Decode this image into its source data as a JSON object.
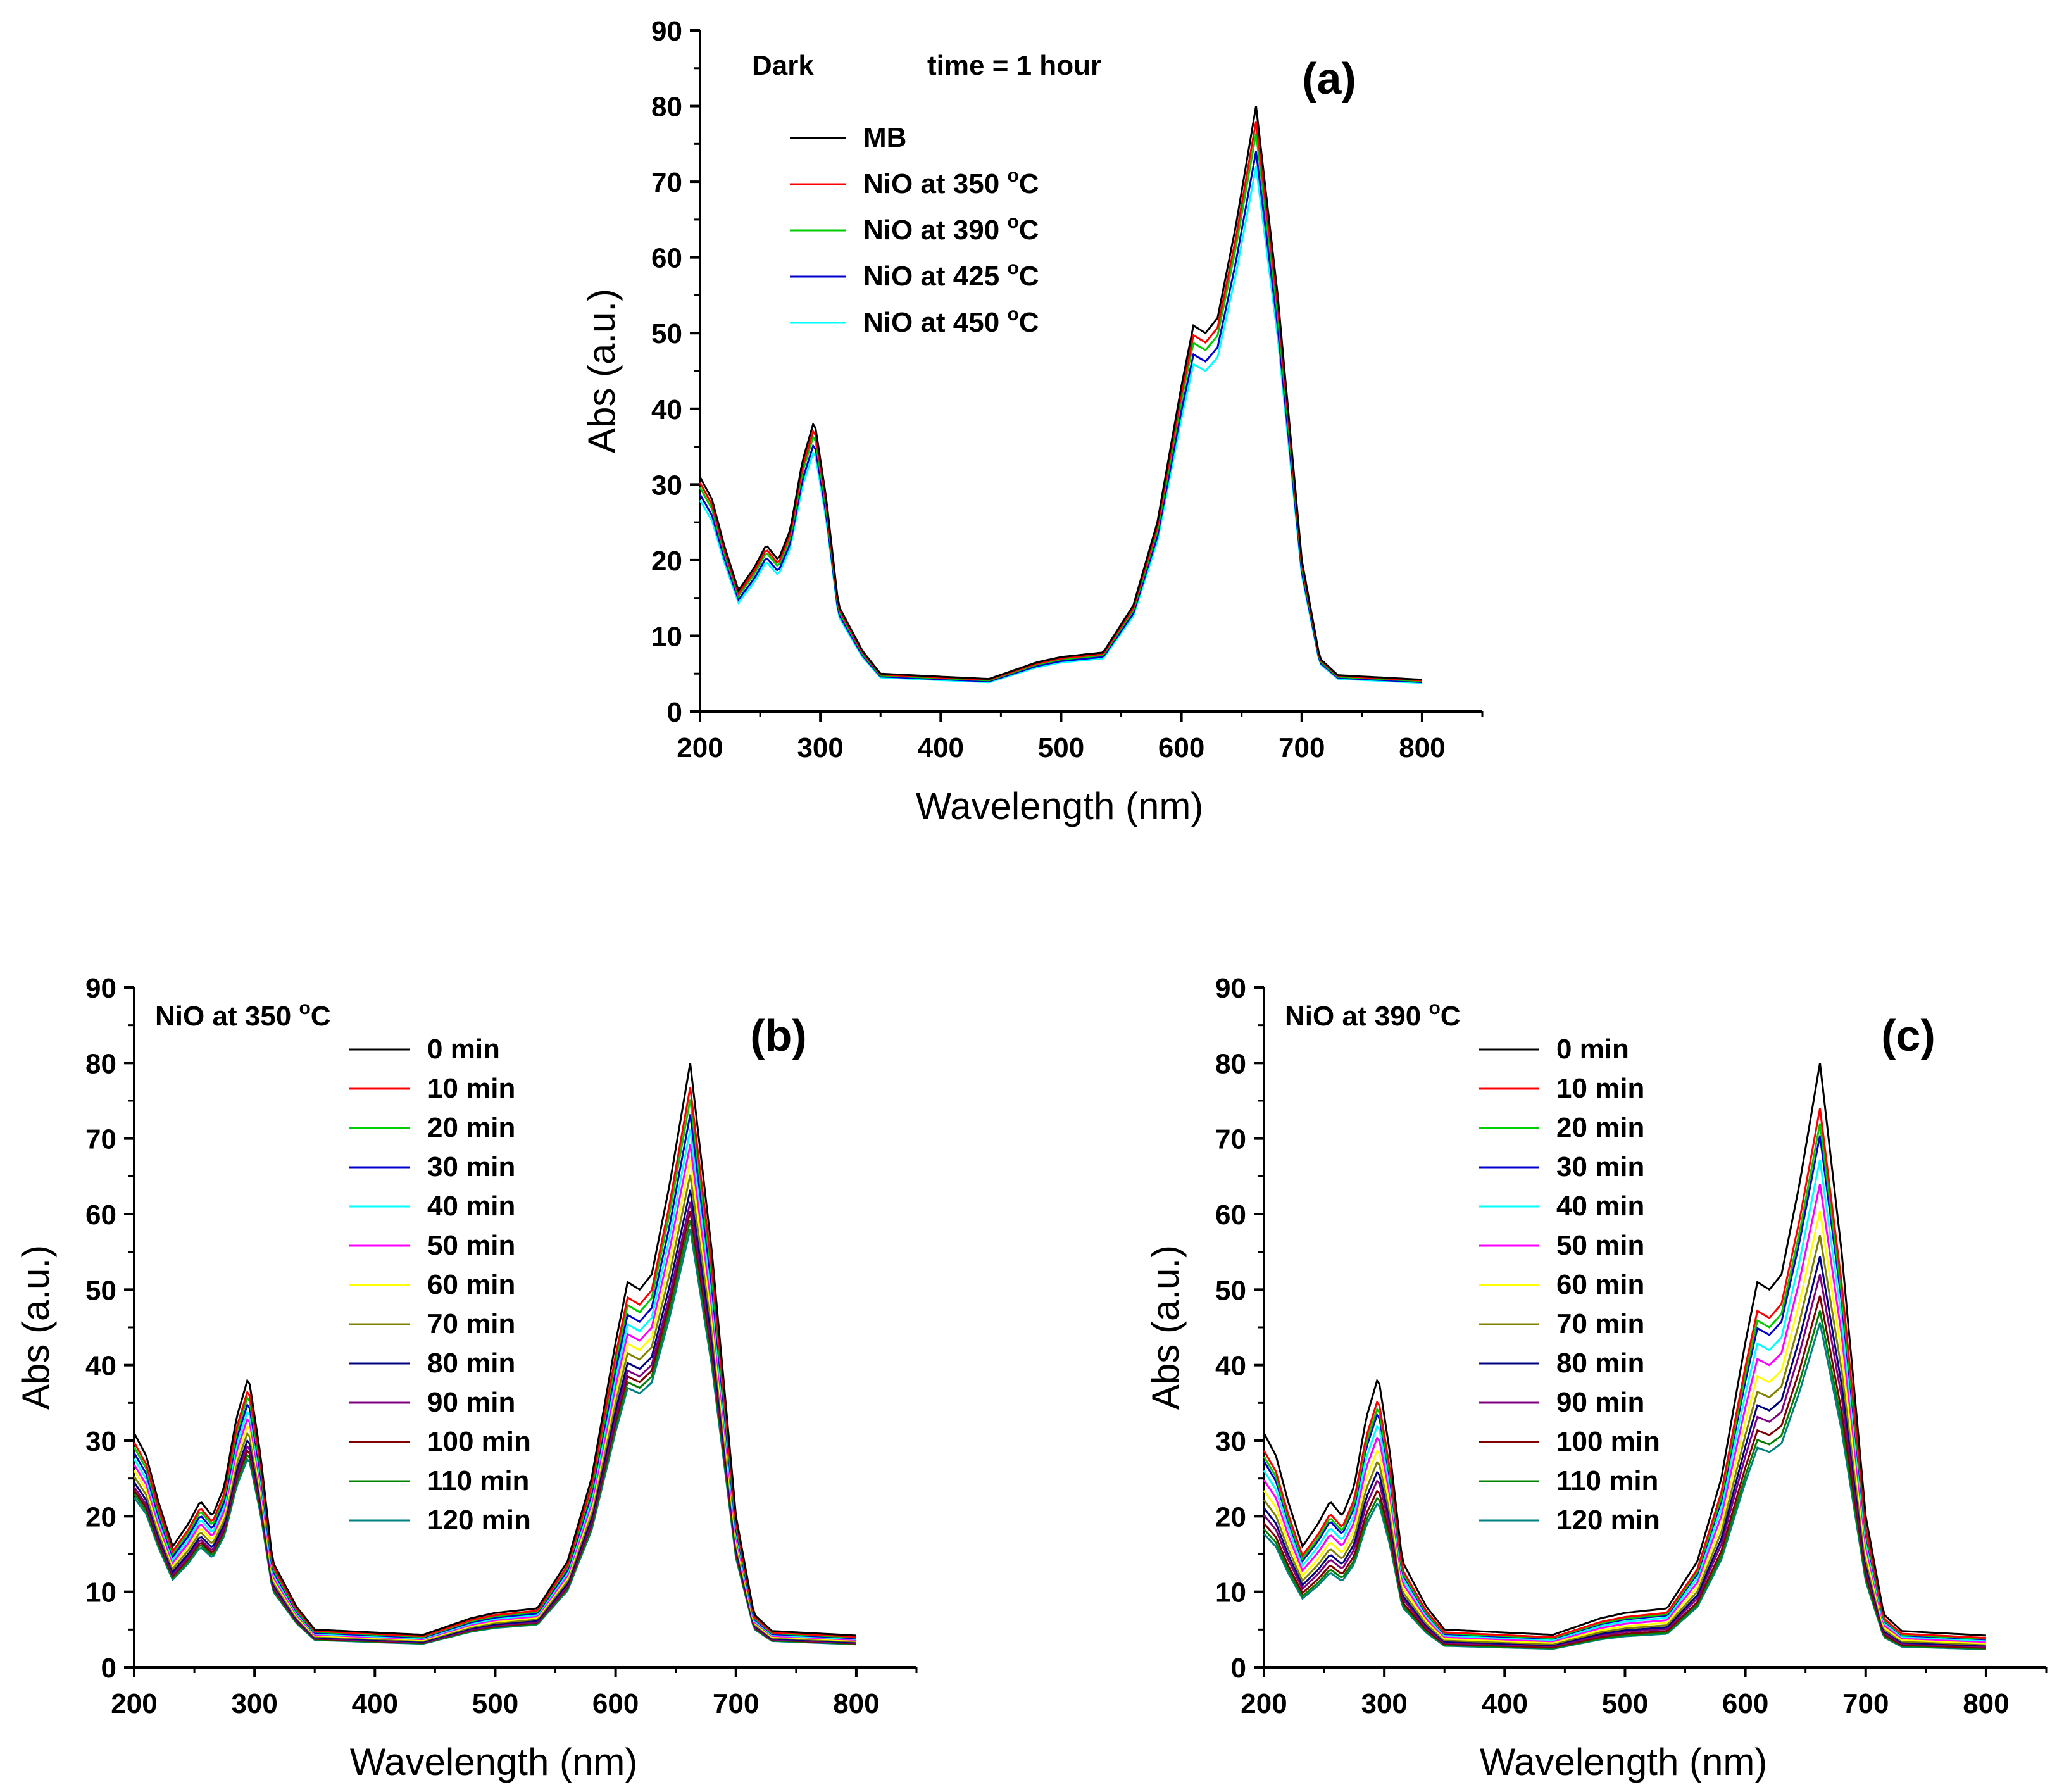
{
  "chart_data": [
    {
      "type": "line",
      "panel_label": "(a)",
      "annotation_left": "Dark",
      "annotation_right": "time = 1 hour",
      "xlabel": "Wavelength (nm)",
      "ylabel": "Abs (a.u.)",
      "xlim": [
        200,
        850
      ],
      "ylim": [
        0,
        90
      ],
      "xticks": [
        200,
        300,
        400,
        500,
        600,
        700,
        800
      ],
      "yticks": [
        0,
        10,
        20,
        30,
        40,
        50,
        60,
        70,
        80,
        90
      ],
      "legend_position": "top-left",
      "series": [
        {
          "name": "MB",
          "label_main": "MB",
          "label_sup": "",
          "label_tail": "",
          "color": "#000000",
          "scale": 1.0
        },
        {
          "name": "NiO at 350 °C",
          "label_main": "NiO at 350 ",
          "label_sup": "o",
          "label_tail": "C",
          "color": "#ff0000",
          "scale": 0.975
        },
        {
          "name": "NiO at 390 °C",
          "label_main": "NiO at 390 ",
          "label_sup": "o",
          "label_tail": "C",
          "color": "#00cc00",
          "scale": 0.955
        },
        {
          "name": "NiO at 425 °C",
          "label_main": "NiO at 425 ",
          "label_sup": "o",
          "label_tail": "C",
          "color": "#0000cc",
          "scale": 0.925
        },
        {
          "name": "NiO at 450 °C",
          "label_main": "NiO at 450 ",
          "label_sup": "o",
          "label_tail": "C",
          "color": "#00ffff",
          "scale": 0.9
        }
      ],
      "base_curve": {
        "x": [
          200,
          210,
          220,
          232,
          245,
          255,
          265,
          275,
          285,
          295,
          305,
          315,
          325,
          335,
          350,
          400,
          440,
          480,
          500,
          535,
          560,
          580,
          600,
          610,
          620,
          630,
          645,
          662,
          680,
          700,
          715,
          730,
          800
        ],
        "y": [
          31,
          28,
          22,
          16,
          19,
          22,
          20,
          24,
          33,
          38.5,
          28,
          14,
          11,
          8,
          5,
          4.6,
          4.3,
          6.5,
          7.2,
          7.8,
          14,
          25,
          43,
          51,
          50,
          52,
          64,
          80,
          55,
          20,
          7,
          4.8,
          4.2
        ]
      }
    },
    {
      "type": "line",
      "panel_label": "(b)",
      "annotation_left": "NiO at 350 ",
      "annotation_sup": "o",
      "annotation_tail": "C",
      "xlabel": "Wavelength (nm)",
      "ylabel": "Abs (a.u.)",
      "xlim": [
        200,
        850
      ],
      "ylim": [
        0,
        90
      ],
      "xticks": [
        200,
        300,
        400,
        500,
        600,
        700,
        800
      ],
      "yticks": [
        0,
        10,
        20,
        30,
        40,
        50,
        60,
        70,
        80,
        90
      ],
      "legend_position": "top-center",
      "series": [
        {
          "name": "0 min",
          "color": "#000000",
          "scale": 1.0
        },
        {
          "name": "10 min",
          "color": "#ff0000",
          "scale": 0.96
        },
        {
          "name": "20 min",
          "color": "#00cc00",
          "scale": 0.94
        },
        {
          "name": "30 min",
          "color": "#0000cc",
          "scale": 0.915
        },
        {
          "name": "40 min",
          "color": "#00ffff",
          "scale": 0.89
        },
        {
          "name": "50 min",
          "color": "#ff00ff",
          "scale": 0.865
        },
        {
          "name": "60 min",
          "color": "#ffff00",
          "scale": 0.84
        },
        {
          "name": "70 min",
          "color": "#808000",
          "scale": 0.815
        },
        {
          "name": "80 min",
          "color": "#000080",
          "scale": 0.79
        },
        {
          "name": "90 min",
          "color": "#800080",
          "scale": 0.77
        },
        {
          "name": "100 min",
          "color": "#800000",
          "scale": 0.755
        },
        {
          "name": "110 min",
          "color": "#008000",
          "scale": 0.74
        },
        {
          "name": "120 min",
          "color": "#008080",
          "scale": 0.725
        }
      ]
    },
    {
      "type": "line",
      "panel_label": "(c)",
      "annotation_left": "NiO at 390 ",
      "annotation_sup": "o",
      "annotation_tail": "C",
      "xlabel": "Wavelength (nm)",
      "ylabel": "Abs (a.u.)",
      "xlim": [
        200,
        850
      ],
      "ylim": [
        0,
        90
      ],
      "xticks": [
        200,
        300,
        400,
        500,
        600,
        700,
        800
      ],
      "yticks": [
        0,
        10,
        20,
        30,
        40,
        50,
        60,
        70,
        80,
        90
      ],
      "legend_position": "top-center",
      "series": [
        {
          "name": "0 min",
          "color": "#000000",
          "scale": 1.0
        },
        {
          "name": "10 min",
          "color": "#ff0000",
          "scale": 0.925
        },
        {
          "name": "20 min",
          "color": "#00cc00",
          "scale": 0.9
        },
        {
          "name": "30 min",
          "color": "#0000cc",
          "scale": 0.88
        },
        {
          "name": "40 min",
          "color": "#00ffff",
          "scale": 0.84
        },
        {
          "name": "50 min",
          "color": "#ff00ff",
          "scale": 0.8
        },
        {
          "name": "60 min",
          "color": "#ffff00",
          "scale": 0.755
        },
        {
          "name": "70 min",
          "color": "#808000",
          "scale": 0.715
        },
        {
          "name": "80 min",
          "color": "#000080",
          "scale": 0.68
        },
        {
          "name": "90 min",
          "color": "#800080",
          "scale": 0.65
        },
        {
          "name": "100 min",
          "color": "#800000",
          "scale": 0.615
        },
        {
          "name": "110 min",
          "color": "#008000",
          "scale": 0.59
        },
        {
          "name": "120 min",
          "color": "#008080",
          "scale": 0.57
        }
      ]
    }
  ]
}
